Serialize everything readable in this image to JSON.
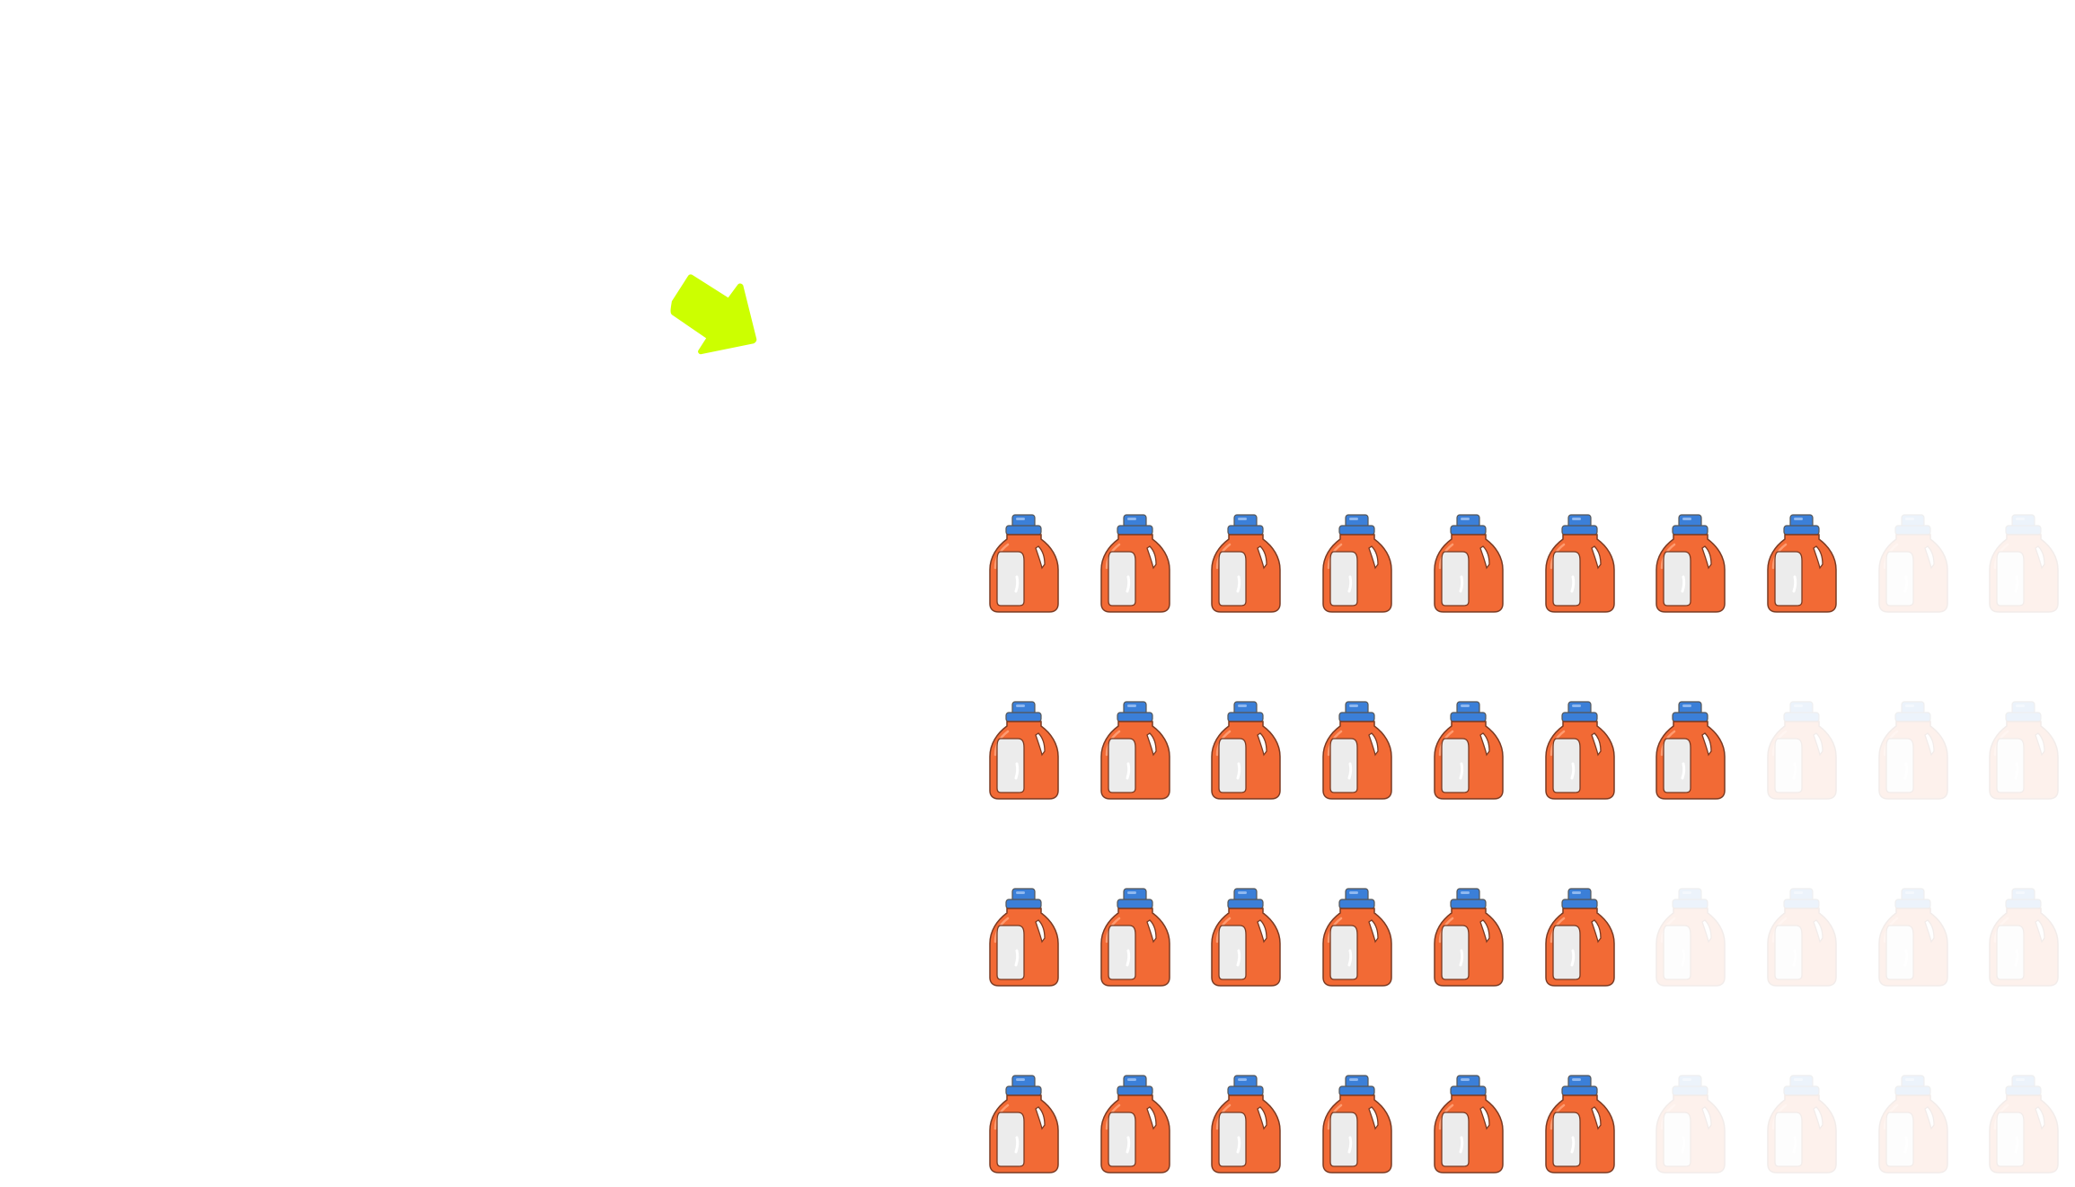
{
  "chart_data": {
    "type": "pictograph",
    "icon": "detergent-bottle-icon",
    "icons_per_row": 10,
    "rows": [
      {
        "filled": 8,
        "total": 10
      },
      {
        "filled": 7,
        "total": 10
      },
      {
        "filled": 6,
        "total": 10
      },
      {
        "filled": 6,
        "total": 10
      }
    ],
    "colors": {
      "cap": "#3b7fd8",
      "body": "#f26a35",
      "label": "#eeeeee",
      "outline": "#7a3a22",
      "arrow": "#ccff00"
    },
    "annotation_icon": "arrow-down-right-icon"
  }
}
